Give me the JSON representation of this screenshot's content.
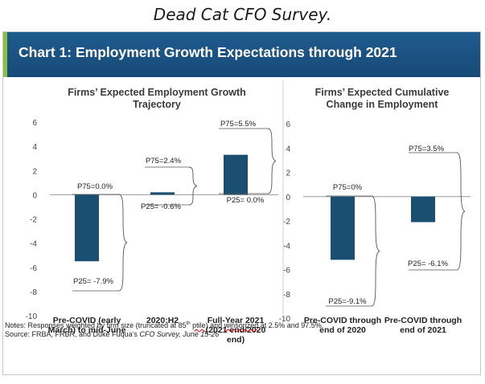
{
  "page_title": "Dead Cat CFO Survey.",
  "banner_title": "Chart 1: Employment Growth Expectations through 2021",
  "notes": {
    "line1_a": "Notes: Responses weighted by firm size (truncated at 85",
    "line1_sup": "th",
    "line1_b": " ",
    "line1_ptile": "ptile",
    "line1_c": ") and ",
    "line1_winsorized": "winsorized",
    "line1_d": " at 2.5% and 97.5%.",
    "line2_a": "Source: FRBA, FRBR, and Duke Fuqua’s ",
    "line2_italic": "CFO Survey, June 15-26"
  },
  "colors": {
    "bar": "#1b4f72",
    "axis": "#999999",
    "text": "#333333"
  },
  "chart_data": [
    {
      "type": "bar",
      "title": "Firms’ Expected Employment Growth Trajectory",
      "title_lines": [
        "Firms’ Expected Employment Growth",
        "Trajectory"
      ],
      "categories": [
        "Pre-COVID (early March) to mid-June",
        "2020:H2",
        "Full-Year 2021 (2021 end/2020 end)"
      ],
      "category_lines": [
        [
          "Pre-COVID (early",
          "March) to mid-June"
        ],
        [
          "2020:H2"
        ],
        [
          "Full-Year 2021",
          "(2021 end/2020",
          "end)"
        ]
      ],
      "values": [
        -5.5,
        0.2,
        3.3
      ],
      "ylim": [
        -10,
        6
      ],
      "yticks": [
        6,
        4,
        2,
        0,
        -2,
        -4,
        -6,
        -8,
        -10
      ],
      "grid": false,
      "annotations": [
        {
          "p75": "P75=0.0%",
          "p25": "P25= -7.9%"
        },
        {
          "p75": "P75=2.4%",
          "p25": "P25= -0.6%"
        },
        {
          "p75": "P75=5.5%",
          "p25": "P25= 0.0%"
        }
      ]
    },
    {
      "type": "bar",
      "title": "Firms’ Expected Cumulative Change in Employment",
      "title_lines": [
        "Firms’ Expected Cumulative",
        "Change in Employment"
      ],
      "categories": [
        "Pre-COVID through end of 2020",
        "Pre-COVID through end of 2021"
      ],
      "category_lines": [
        [
          "Pre-COVID through",
          "end of 2020"
        ],
        [
          "Pre-COVID through",
          "end of 2021"
        ]
      ],
      "values": [
        -5.2,
        -2.1
      ],
      "ylim": [
        -10,
        6
      ],
      "yticks": [
        6,
        4,
        2,
        0,
        -2,
        -4,
        -6,
        -8,
        -10
      ],
      "grid": false,
      "annotations": [
        {
          "p75": "P75=0%",
          "p25": "P25=-9.1%"
        },
        {
          "p75": "P75=3.5%",
          "p25": "P25= -6.1%"
        }
      ]
    }
  ]
}
